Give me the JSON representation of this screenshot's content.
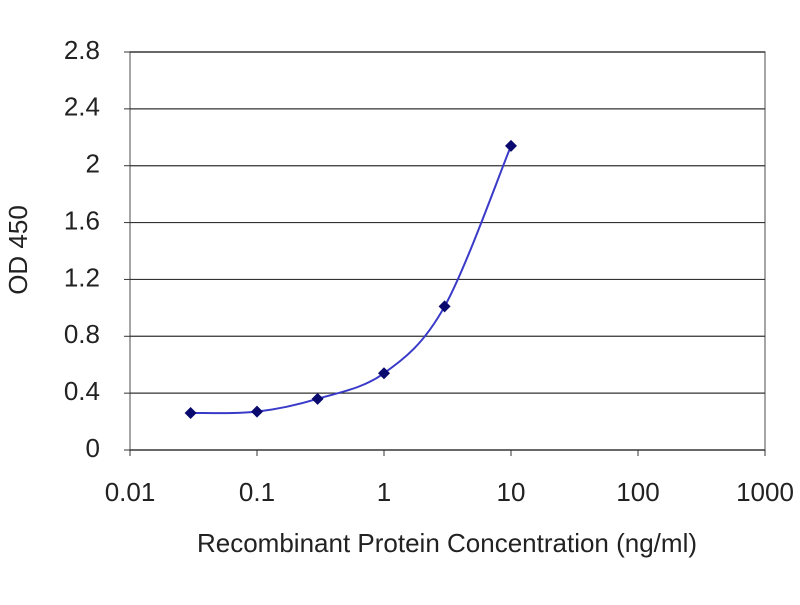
{
  "chart_data": {
    "type": "line",
    "x_label": "Recombinant Protein Concentration (ng/ml)",
    "y_label": "OD 450",
    "x": [
      0.03,
      0.1,
      0.3,
      1,
      3,
      10
    ],
    "series": [
      {
        "color": "#3a3ac8",
        "marker_color": "#0a0a6e",
        "values": [
          0.26,
          0.27,
          0.36,
          0.54,
          1.01,
          2.14
        ]
      }
    ],
    "xscale": "log",
    "xlim": [
      0.01,
      1000
    ],
    "xticks": [
      0.01,
      0.1,
      1,
      10,
      100,
      1000
    ],
    "ylim": [
      0,
      2.8
    ],
    "yticks": [
      0,
      0.4,
      0.8,
      1.2,
      1.6,
      2,
      2.4,
      2.8
    ],
    "grid": true
  }
}
